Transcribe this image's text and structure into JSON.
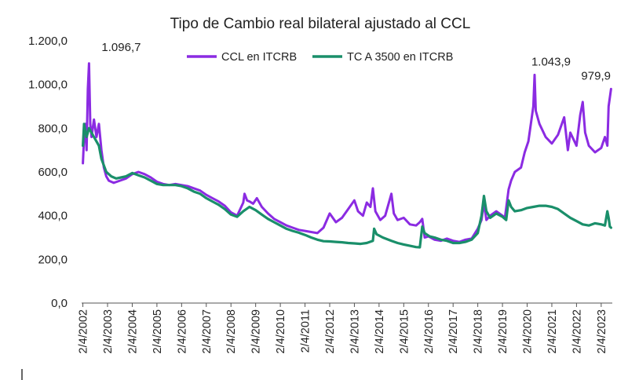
{
  "chart_data": {
    "type": "line",
    "title": "Tipo de Cambio real bilateral ajustado al CCL",
    "ylim": [
      0,
      1200
    ],
    "y_ticks": [
      0,
      200,
      400,
      600,
      800,
      1000,
      1200
    ],
    "y_tick_labels": [
      "0,0",
      "200,0",
      "400,0",
      "600,0",
      "800,0",
      "1.000,0",
      "1.200,0"
    ],
    "x_range": [
      2002.2,
      2023.7
    ],
    "x_ticks": [
      2002.25,
      2003.25,
      2004.25,
      2005.25,
      2006.25,
      2007.25,
      2008.25,
      2009.25,
      2010.25,
      2011.25,
      2012.25,
      2013.25,
      2014.25,
      2015.25,
      2016.25,
      2017.25,
      2018.25,
      2019.25,
      2020.25,
      2021.25,
      2022.25,
      2023.25
    ],
    "x_tick_labels": [
      "2/4/2002",
      "2/4/2003",
      "2/4/2004",
      "2/4/2005",
      "2/4/2006",
      "2/4/2007",
      "2/4/2008",
      "2/4/2009",
      "2/4/2010",
      "2/4/2011",
      "2/4/2012",
      "2/4/2013",
      "2/4/2014",
      "2/4/2015",
      "2/4/2016",
      "2/4/2017",
      "2/4/2018",
      "2/4/2019",
      "2/4/2020",
      "2/4/2021",
      "2/4/2022",
      "2/4/2023"
    ],
    "legend_position": "top-center",
    "series": [
      {
        "name": "CCL en ITCRB",
        "color": "#8b2be2",
        "points": [
          [
            2002.25,
            640
          ],
          [
            2002.3,
            760
          ],
          [
            2002.35,
            820
          ],
          [
            2002.4,
            700
          ],
          [
            2002.45,
            980
          ],
          [
            2002.5,
            1096.7
          ],
          [
            2002.55,
            820
          ],
          [
            2002.6,
            760
          ],
          [
            2002.7,
            840
          ],
          [
            2002.8,
            760
          ],
          [
            2002.9,
            820
          ],
          [
            2003.0,
            700
          ],
          [
            2003.1,
            620
          ],
          [
            2003.2,
            580
          ],
          [
            2003.3,
            560
          ],
          [
            2003.5,
            550
          ],
          [
            2003.75,
            560
          ],
          [
            2004.0,
            570
          ],
          [
            2004.25,
            590
          ],
          [
            2004.5,
            600
          ],
          [
            2004.75,
            590
          ],
          [
            2005.0,
            575
          ],
          [
            2005.25,
            555
          ],
          [
            2005.5,
            545
          ],
          [
            2005.75,
            540
          ],
          [
            2006.0,
            545
          ],
          [
            2006.25,
            540
          ],
          [
            2006.5,
            535
          ],
          [
            2006.75,
            525
          ],
          [
            2007.0,
            515
          ],
          [
            2007.25,
            495
          ],
          [
            2007.5,
            480
          ],
          [
            2007.75,
            465
          ],
          [
            2008.0,
            445
          ],
          [
            2008.25,
            415
          ],
          [
            2008.5,
            400
          ],
          [
            2008.75,
            460
          ],
          [
            2008.8,
            500
          ],
          [
            2008.9,
            470
          ],
          [
            2009.0,
            465
          ],
          [
            2009.15,
            455
          ],
          [
            2009.3,
            480
          ],
          [
            2009.5,
            440
          ],
          [
            2009.75,
            410
          ],
          [
            2010.0,
            385
          ],
          [
            2010.25,
            370
          ],
          [
            2010.5,
            355
          ],
          [
            2010.75,
            345
          ],
          [
            2011.0,
            335
          ],
          [
            2011.25,
            330
          ],
          [
            2011.5,
            325
          ],
          [
            2011.75,
            320
          ],
          [
            2012.0,
            345
          ],
          [
            2012.25,
            410
          ],
          [
            2012.5,
            370
          ],
          [
            2012.75,
            390
          ],
          [
            2013.0,
            430
          ],
          [
            2013.25,
            470
          ],
          [
            2013.4,
            420
          ],
          [
            2013.6,
            400
          ],
          [
            2013.75,
            460
          ],
          [
            2013.9,
            440
          ],
          [
            2014.0,
            525
          ],
          [
            2014.1,
            420
          ],
          [
            2014.3,
            380
          ],
          [
            2014.5,
            400
          ],
          [
            2014.75,
            500
          ],
          [
            2014.85,
            410
          ],
          [
            2015.0,
            380
          ],
          [
            2015.25,
            390
          ],
          [
            2015.5,
            360
          ],
          [
            2015.75,
            355
          ],
          [
            2015.9,
            370
          ],
          [
            2016.0,
            385
          ],
          [
            2016.1,
            300
          ],
          [
            2016.25,
            305
          ],
          [
            2016.5,
            290
          ],
          [
            2016.75,
            285
          ],
          [
            2017.0,
            295
          ],
          [
            2017.25,
            285
          ],
          [
            2017.5,
            280
          ],
          [
            2017.75,
            290
          ],
          [
            2018.0,
            295
          ],
          [
            2018.25,
            340
          ],
          [
            2018.4,
            380
          ],
          [
            2018.5,
            460
          ],
          [
            2018.6,
            380
          ],
          [
            2018.75,
            400
          ],
          [
            2019.0,
            420
          ],
          [
            2019.25,
            400
          ],
          [
            2019.35,
            390
          ],
          [
            2019.5,
            520
          ],
          [
            2019.6,
            560
          ],
          [
            2019.75,
            600
          ],
          [
            2020.0,
            620
          ],
          [
            2020.15,
            690
          ],
          [
            2020.3,
            740
          ],
          [
            2020.5,
            900
          ],
          [
            2020.55,
            1043.9
          ],
          [
            2020.6,
            880
          ],
          [
            2020.75,
            820
          ],
          [
            2021.0,
            760
          ],
          [
            2021.25,
            730
          ],
          [
            2021.5,
            770
          ],
          [
            2021.75,
            850
          ],
          [
            2021.9,
            700
          ],
          [
            2022.0,
            780
          ],
          [
            2022.25,
            720
          ],
          [
            2022.4,
            860
          ],
          [
            2022.5,
            920
          ],
          [
            2022.6,
            780
          ],
          [
            2022.75,
            720
          ],
          [
            2023.0,
            690
          ],
          [
            2023.25,
            710
          ],
          [
            2023.4,
            760
          ],
          [
            2023.5,
            720
          ],
          [
            2023.55,
            900
          ],
          [
            2023.65,
            979.9
          ]
        ]
      },
      {
        "name": "TC A 3500 en ITCRB",
        "color": "#1a8f6a",
        "points": [
          [
            2002.25,
            720
          ],
          [
            2002.3,
            820
          ],
          [
            2002.4,
            760
          ],
          [
            2002.5,
            800
          ],
          [
            2002.7,
            760
          ],
          [
            2002.9,
            720
          ],
          [
            2003.0,
            660
          ],
          [
            2003.2,
            600
          ],
          [
            2003.4,
            580
          ],
          [
            2003.6,
            570
          ],
          [
            2003.8,
            575
          ],
          [
            2004.0,
            580
          ],
          [
            2004.25,
            595
          ],
          [
            2004.5,
            585
          ],
          [
            2004.75,
            575
          ],
          [
            2005.0,
            560
          ],
          [
            2005.25,
            545
          ],
          [
            2005.5,
            540
          ],
          [
            2005.75,
            540
          ],
          [
            2006.0,
            540
          ],
          [
            2006.25,
            535
          ],
          [
            2006.5,
            525
          ],
          [
            2006.75,
            510
          ],
          [
            2007.0,
            500
          ],
          [
            2007.25,
            480
          ],
          [
            2007.5,
            465
          ],
          [
            2007.75,
            450
          ],
          [
            2008.0,
            430
          ],
          [
            2008.25,
            405
          ],
          [
            2008.5,
            395
          ],
          [
            2008.75,
            420
          ],
          [
            2009.0,
            440
          ],
          [
            2009.25,
            425
          ],
          [
            2009.5,
            405
          ],
          [
            2009.75,
            385
          ],
          [
            2010.0,
            370
          ],
          [
            2010.25,
            355
          ],
          [
            2010.5,
            340
          ],
          [
            2010.75,
            330
          ],
          [
            2011.0,
            322
          ],
          [
            2011.25,
            312
          ],
          [
            2011.5,
            300
          ],
          [
            2011.75,
            290
          ],
          [
            2012.0,
            283
          ],
          [
            2012.25,
            282
          ],
          [
            2012.5,
            280
          ],
          [
            2012.75,
            278
          ],
          [
            2013.0,
            275
          ],
          [
            2013.25,
            273
          ],
          [
            2013.5,
            271
          ],
          [
            2013.75,
            275
          ],
          [
            2014.0,
            285
          ],
          [
            2014.05,
            340
          ],
          [
            2014.15,
            315
          ],
          [
            2014.4,
            300
          ],
          [
            2014.75,
            285
          ],
          [
            2015.0,
            275
          ],
          [
            2015.25,
            268
          ],
          [
            2015.5,
            262
          ],
          [
            2015.75,
            256
          ],
          [
            2015.9,
            255
          ],
          [
            2016.0,
            350
          ],
          [
            2016.1,
            320
          ],
          [
            2016.3,
            305
          ],
          [
            2016.5,
            300
          ],
          [
            2016.75,
            290
          ],
          [
            2017.0,
            285
          ],
          [
            2017.25,
            275
          ],
          [
            2017.5,
            275
          ],
          [
            2017.75,
            280
          ],
          [
            2018.0,
            290
          ],
          [
            2018.25,
            320
          ],
          [
            2018.4,
            400
          ],
          [
            2018.5,
            490
          ],
          [
            2018.6,
            420
          ],
          [
            2018.75,
            390
          ],
          [
            2019.0,
            410
          ],
          [
            2019.25,
            395
          ],
          [
            2019.4,
            380
          ],
          [
            2019.5,
            470
          ],
          [
            2019.6,
            440
          ],
          [
            2019.75,
            420
          ],
          [
            2020.0,
            425
          ],
          [
            2020.25,
            435
          ],
          [
            2020.5,
            440
          ],
          [
            2020.75,
            445
          ],
          [
            2021.0,
            445
          ],
          [
            2021.25,
            440
          ],
          [
            2021.5,
            430
          ],
          [
            2021.75,
            410
          ],
          [
            2022.0,
            390
          ],
          [
            2022.25,
            375
          ],
          [
            2022.5,
            360
          ],
          [
            2022.75,
            355
          ],
          [
            2023.0,
            365
          ],
          [
            2023.25,
            360
          ],
          [
            2023.4,
            355
          ],
          [
            2023.5,
            420
          ],
          [
            2023.55,
            390
          ],
          [
            2023.6,
            350
          ],
          [
            2023.65,
            345
          ]
        ]
      }
    ],
    "annotations": [
      {
        "text": "1.096,7",
        "x": 2002.5,
        "y": 1096.7
      },
      {
        "text": "1.043,9",
        "x": 2020.55,
        "y": 1043.9
      },
      {
        "text": "979,9",
        "x": 2023.65,
        "y": 979.9
      }
    ]
  }
}
